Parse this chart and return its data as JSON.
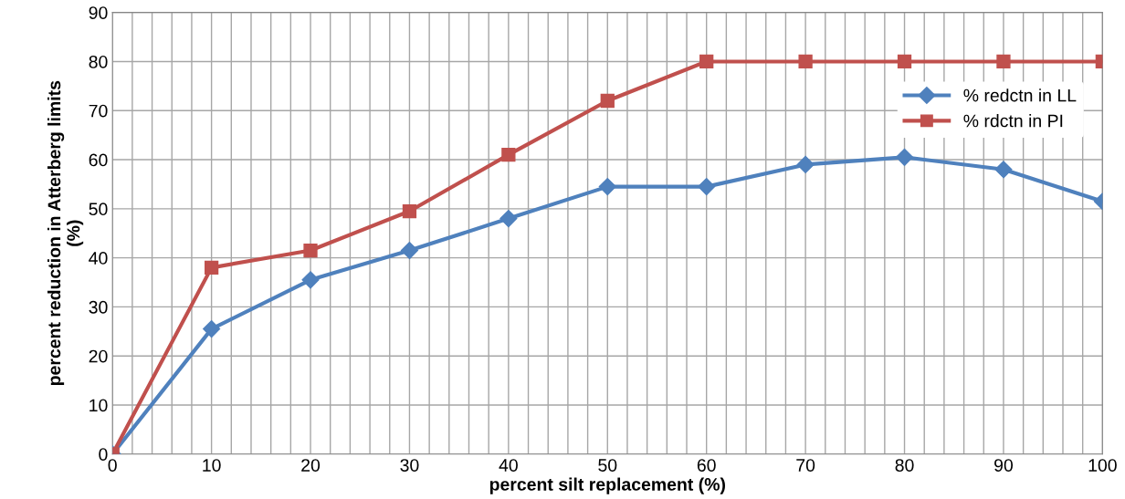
{
  "chart_data": {
    "type": "line",
    "xlabel": "percent silt replacement (%)",
    "ylabel": "percent reduction in Atterberg limits\n(%)",
    "x": [
      0,
      10,
      20,
      30,
      40,
      50,
      60,
      70,
      80,
      90,
      100
    ],
    "series": [
      {
        "name": "% redctn in LL",
        "color": "#4f81bd",
        "marker": "diamond",
        "values": [
          0,
          25.5,
          35.5,
          41.5,
          48,
          54.5,
          54.5,
          59,
          60.5,
          58,
          51.5
        ]
      },
      {
        "name": "% rdctn in PI",
        "color": "#c0504d",
        "marker": "square",
        "values": [
          0,
          38,
          41.5,
          49.5,
          61,
          72,
          80,
          80,
          80,
          80,
          80
        ]
      }
    ],
    "xlim": [
      0,
      100
    ],
    "ylim": [
      0,
      90
    ],
    "xticks": [
      0,
      {
        "value": 2,
        "label": null
      },
      {
        "value": 4,
        "label": null
      },
      {
        "value": 6,
        "label": null
      },
      {
        "value": 8,
        "label": null
      },
      10,
      {
        "value": 12,
        "label": null
      },
      {
        "value": 14,
        "label": null
      },
      {
        "value": 16,
        "label": null
      },
      {
        "value": 18,
        "label": null
      },
      20,
      {
        "value": 22,
        "label": null
      },
      {
        "value": 24,
        "label": null
      },
      {
        "value": 26,
        "label": null
      },
      {
        "value": 28,
        "label": null
      },
      30,
      {
        "value": 32,
        "label": null
      },
      {
        "value": 34,
        "label": null
      },
      {
        "value": 36,
        "label": null
      },
      {
        "value": 38,
        "label": null
      },
      40,
      {
        "value": 42,
        "label": null
      },
      {
        "value": 44,
        "label": null
      },
      {
        "value": 46,
        "label": null
      },
      {
        "value": 48,
        "label": null
      },
      50,
      {
        "value": 52,
        "label": null
      },
      {
        "value": 54,
        "label": null
      },
      {
        "value": 56,
        "label": null
      },
      {
        "value": 58,
        "label": null
      },
      60,
      {
        "value": 62,
        "label": null
      },
      {
        "value": 64,
        "label": null
      },
      {
        "value": 66,
        "label": null
      },
      {
        "value": 68,
        "label": null
      },
      70,
      {
        "value": 72,
        "label": null
      },
      {
        "value": 74,
        "label": null
      },
      {
        "value": 76,
        "label": null
      },
      {
        "value": 78,
        "label": null
      },
      80,
      {
        "value": 82,
        "label": null
      },
      {
        "value": 84,
        "label": null
      },
      {
        "value": 86,
        "label": null
      },
      {
        "value": 88,
        "label": null
      },
      90,
      {
        "value": 92,
        "label": null
      },
      {
        "value": 94,
        "label": null
      },
      {
        "value": 96,
        "label": null
      },
      {
        "value": 98,
        "label": null
      },
      100
    ],
    "yticks": [
      0,
      10,
      20,
      30,
      40,
      50,
      60,
      70,
      80,
      90
    ],
    "grid": true,
    "legend": "right",
    "line_style": "solid"
  }
}
